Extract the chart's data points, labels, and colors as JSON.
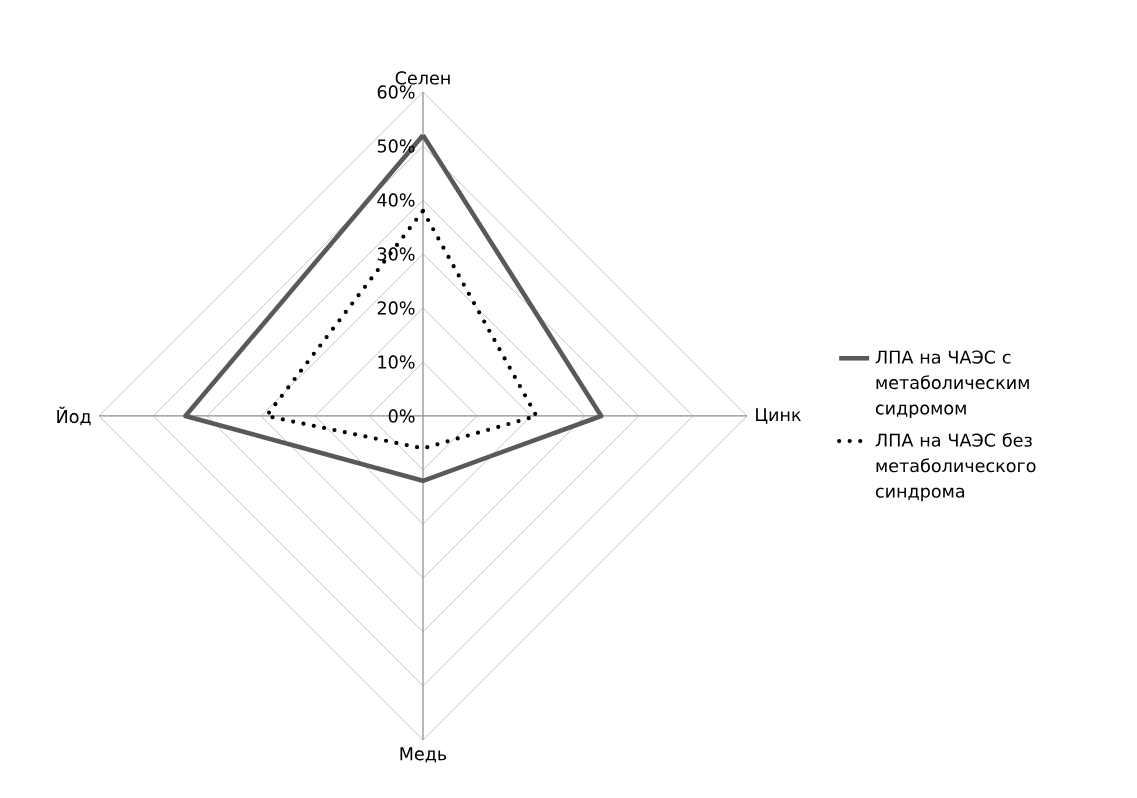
{
  "chart_data": {
    "type": "radar",
    "categories": [
      "Селен",
      "Цинк",
      "Медь",
      "Йод"
    ],
    "series": [
      {
        "name": "ЛПА на ЧАЭС с метаболическим сидромом",
        "color": "#595959",
        "line_style": "solid",
        "values": [
          52,
          33,
          12,
          44
        ]
      },
      {
        "name": "ЛПА на ЧАЭС без метаболического синдрома",
        "color": "#000000",
        "line_style": "dotted",
        "values": [
          38,
          21,
          6,
          29
        ]
      }
    ],
    "ylim": [
      0,
      60
    ],
    "yticks": [
      {
        "value": 0,
        "label": "0%"
      },
      {
        "value": 10,
        "label": "10%"
      },
      {
        "value": 20,
        "label": "20%"
      },
      {
        "value": 30,
        "label": "30%"
      },
      {
        "value": 40,
        "label": "40%"
      },
      {
        "value": 50,
        "label": "50%"
      },
      {
        "value": 60,
        "label": "60%"
      }
    ],
    "grid": true,
    "legend": "right",
    "marker": "none"
  }
}
